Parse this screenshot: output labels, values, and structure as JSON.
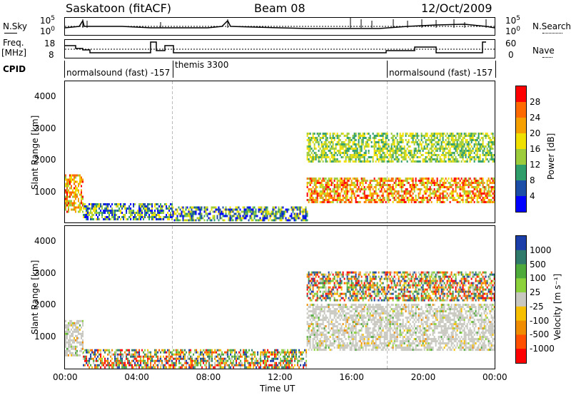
{
  "header": {
    "station": "Saskatoon (fitACF)",
    "beam": "Beam 08",
    "date": "12/Oct/2009"
  },
  "top_panels": {
    "nsky_label": "N.Sky",
    "nsearch_label": "N.Search",
    "nsky_ticks": [
      "10^5",
      "10^0"
    ],
    "nsky_ticks_right": [
      "10^5",
      "10^0"
    ],
    "freq_label_1": "Freq.",
    "freq_label_2": "[MHz]",
    "freq_ticks": [
      "18",
      "8"
    ],
    "nave_label": "Nave",
    "nave_ticks": [
      "60",
      "0"
    ],
    "cpid_label": "CPID",
    "cpid_entries": [
      {
        "text": "normalsound (fast) -157"
      },
      {
        "text": "themis 3300"
      },
      {
        "text": "normalsound (fast) -157"
      }
    ]
  },
  "chart_data": [
    {
      "type": "heatmap",
      "name": "Power",
      "ylabel": "Slant Range [km]",
      "yticks": [
        "1000",
        "2000",
        "3000",
        "4000"
      ],
      "ylim": [
        200,
        4600
      ],
      "colorbar": {
        "label": "Power [dB]",
        "ticks": [
          "28",
          "24",
          "20",
          "16",
          "12",
          "8",
          "4"
        ],
        "colors": [
          "#ff0000",
          "#ff6a00",
          "#f6a000",
          "#f0e000",
          "#9ccc3c",
          "#2f9e6a",
          "#1c4ea8",
          "#0000ff"
        ]
      },
      "regions": [
        {
          "start_h": 0.0,
          "end_h": 1.0,
          "r_min": 500,
          "r_max": 1700,
          "level": "high"
        },
        {
          "start_h": 1.0,
          "end_h": 6.0,
          "r_min": 300,
          "r_max": 800,
          "level": "low"
        },
        {
          "start_h": 6.0,
          "end_h": 13.5,
          "r_min": 250,
          "r_max": 700,
          "level": "low"
        },
        {
          "start_h": 13.5,
          "end_h": 24.0,
          "r_min": 800,
          "r_max": 1600,
          "level": "high"
        },
        {
          "start_h": 13.5,
          "end_h": 24.0,
          "r_min": 2100,
          "r_max": 3000,
          "level": "mid"
        }
      ]
    },
    {
      "type": "heatmap",
      "name": "Velocity",
      "ylabel": "Slant Range [km]",
      "yticks": [
        "1000",
        "2000",
        "3000",
        "4000"
      ],
      "ylim": [
        200,
        4600
      ],
      "colorbar": {
        "label": "Velocity [m s⁻¹]",
        "ticks": [
          "1000",
          "500",
          "100",
          "25",
          "-25",
          "-100",
          "-500",
          "-1000"
        ],
        "colors": [
          "#1c3ea8",
          "#2f7a6a",
          "#4faa3c",
          "#8cd23c",
          "#c8c8c0",
          "#f6c000",
          "#f08c00",
          "#ff5000",
          "#ff0000"
        ]
      },
      "regions": [
        {
          "start_h": 0.0,
          "end_h": 1.0,
          "r_min": 600,
          "r_max": 1700,
          "level": "gray"
        },
        {
          "start_h": 1.0,
          "end_h": 13.5,
          "r_min": 250,
          "r_max": 800,
          "level": "mixed"
        },
        {
          "start_h": 13.5,
          "end_h": 24.0,
          "r_min": 800,
          "r_max": 2200,
          "level": "gray"
        },
        {
          "start_h": 13.5,
          "end_h": 24.0,
          "r_min": 2300,
          "r_max": 3200,
          "level": "mixed"
        }
      ]
    }
  ],
  "xaxis": {
    "ticks": [
      "00:00",
      "04:00",
      "08:00",
      "12:00",
      "16:00",
      "20:00",
      "00:00"
    ],
    "label": "Time UT"
  }
}
